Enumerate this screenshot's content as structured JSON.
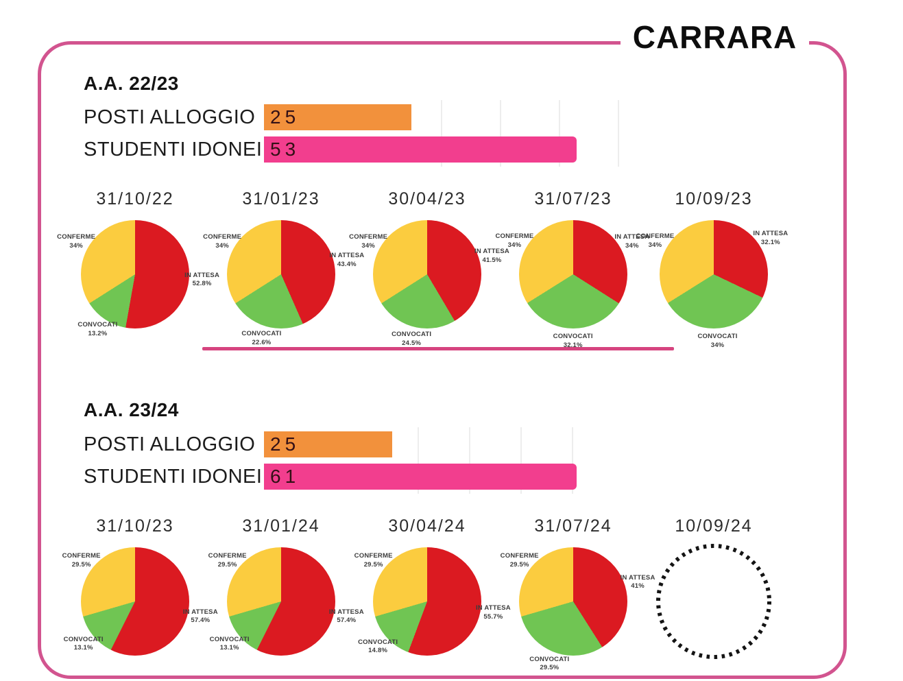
{
  "title": "CARRARA",
  "palette": {
    "in_attesa": "#DB1A21",
    "convocati": "#70C553",
    "conferme": "#FBCC3F",
    "orange": "#F2913C",
    "pink": "#F23E8E",
    "border_pink": "#D2548F",
    "divider_pink": "#D6447F",
    "gridline": "#EDEDED",
    "bar_value_text": "#331016",
    "text_dark": "#141414"
  },
  "chart_data": {
    "type": "mixed",
    "slice_labels": [
      "IN ATTESA",
      "CONVOCATI",
      "CONFERME"
    ],
    "slice_color_keys": [
      "in_attesa",
      "convocati",
      "conferme"
    ],
    "groups": [
      {
        "heading": "A.A. 22/23",
        "bar_chart": {
          "type": "bar",
          "orientation": "horizontal",
          "categories": [
            "POSTI ALLOGGIO",
            "STUDENTI IDONEI"
          ],
          "values": [
            25,
            53
          ],
          "value_displays": [
            "25",
            "53"
          ],
          "color_keys": [
            "orange",
            "pink"
          ],
          "gridline_values": [
            30,
            40,
            50,
            60
          ]
        },
        "pie_charts": [
          {
            "type": "pie",
            "title": "31/10/22",
            "values": [
              52.8,
              13.2,
              34
            ],
            "displays": [
              "52.8%",
              "13.2%",
              "34%"
            ]
          },
          {
            "type": "pie",
            "title": "31/01/23",
            "values": [
              43.4,
              22.6,
              34
            ],
            "displays": [
              "43.4%",
              "22.6%",
              "34%"
            ]
          },
          {
            "type": "pie",
            "title": "30/04/23",
            "values": [
              41.5,
              24.5,
              34
            ],
            "displays": [
              "41.5%",
              "24.5%",
              "34%"
            ]
          },
          {
            "type": "pie",
            "title": "31/07/23",
            "values": [
              34,
              32.1,
              34
            ],
            "displays": [
              "34%",
              "32.1%",
              "34%"
            ]
          },
          {
            "type": "pie",
            "title": "10/09/23",
            "values": [
              32.1,
              34,
              34
            ],
            "displays": [
              "32.1%",
              "34%",
              "34%"
            ]
          }
        ]
      },
      {
        "heading": "A.A. 23/24",
        "bar_chart": {
          "type": "bar",
          "orientation": "horizontal",
          "categories": [
            "POSTI ALLOGGIO",
            "STUDENTI IDONEI"
          ],
          "values": [
            25,
            61
          ],
          "value_displays": [
            "25",
            "61"
          ],
          "color_keys": [
            "orange",
            "pink"
          ],
          "gridline_values": [
            30,
            40,
            50,
            60
          ]
        },
        "pie_charts": [
          {
            "type": "pie",
            "title": "31/10/23",
            "values": [
              57.4,
              13.1,
              29.5
            ],
            "displays": [
              "57.4%",
              "13.1%",
              "29.5%"
            ]
          },
          {
            "type": "pie",
            "title": "31/01/24",
            "values": [
              57.4,
              13.1,
              29.5
            ],
            "displays": [
              "57.4%",
              "13.1%",
              "29.5%"
            ]
          },
          {
            "type": "pie",
            "title": "30/04/24",
            "values": [
              55.7,
              14.8,
              29.5
            ],
            "displays": [
              "55.7%",
              "14.8%",
              "29.5%"
            ]
          },
          {
            "type": "pie",
            "title": "31/07/24",
            "values": [
              41,
              29.5,
              29.5
            ],
            "displays": [
              "41%",
              "29.5%",
              "29.5%"
            ]
          },
          {
            "type": "pie",
            "title": "10/09/24",
            "empty": true
          }
        ]
      }
    ]
  }
}
